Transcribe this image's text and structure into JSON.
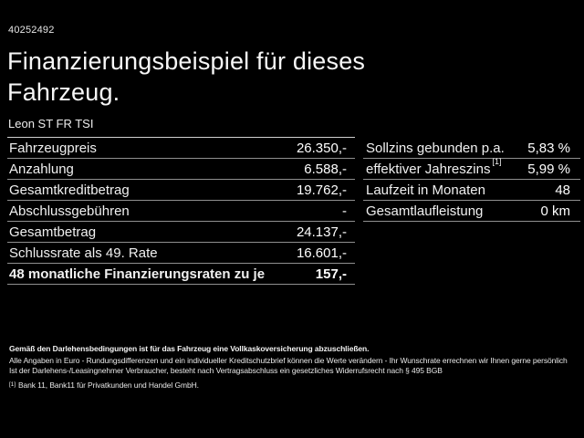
{
  "header": {
    "id": "40252492",
    "title_line1": "Finanzierungsbeispiel für dieses",
    "title_line2": "Fahrzeug.",
    "subtitle": "Leon ST FR TSI"
  },
  "left_table": {
    "rows": [
      {
        "label": "Fahrzeugpreis",
        "value": "26.350,-"
      },
      {
        "label": "Anzahlung",
        "value": "6.588,-"
      },
      {
        "label": "Gesamtkreditbetrag",
        "value": "19.762,-"
      },
      {
        "label": "Abschlussgebühren",
        "value": "-"
      },
      {
        "label": "Gesamtbetrag",
        "value": "24.137,-"
      },
      {
        "label": "Schlussrate als 49. Rate",
        "value": "16.601,-"
      },
      {
        "label": "48 monatliche Finanzierungsraten zu je",
        "value": "157,-"
      }
    ]
  },
  "right_table": {
    "rows": [
      {
        "label": "Sollzins gebunden p.a.",
        "value": "5,83 %"
      },
      {
        "label": "effektiver Jahreszins",
        "sup": "[1]",
        "value": "5,99 %"
      },
      {
        "label": "Laufzeit in Monaten",
        "value": "48"
      },
      {
        "label": "Gesamtlaufleistung",
        "value": "0 km"
      }
    ]
  },
  "footer": {
    "insurance_note": "Gemäß den Darlehensbedingungen ist für das Fahrzeug eine Vollkaskoversicherung abzuschließen.",
    "disclaimer1": "Alle Angaben in Euro - Rundungsdifferenzen und ein individueller Kreditschutzbrief können die Werte verändern - Ihr Wunschrate errechnen wir Ihnen gerne persönlich",
    "disclaimer2": "Ist der Darlehens-/Leasingnehmer Verbraucher, besteht nach Vertragsabschluss ein gesetzliches Widerrufsrecht nach § 495 BGB",
    "footnote_marker": "[1]",
    "footnote_text": "Bank 11, Bank11 für Privatkunden und Handel GmbH."
  },
  "colors": {
    "background": "#000000",
    "text": "#ffffff",
    "divider": "#8f8f8f",
    "top_divider": "#cfcfcf"
  }
}
